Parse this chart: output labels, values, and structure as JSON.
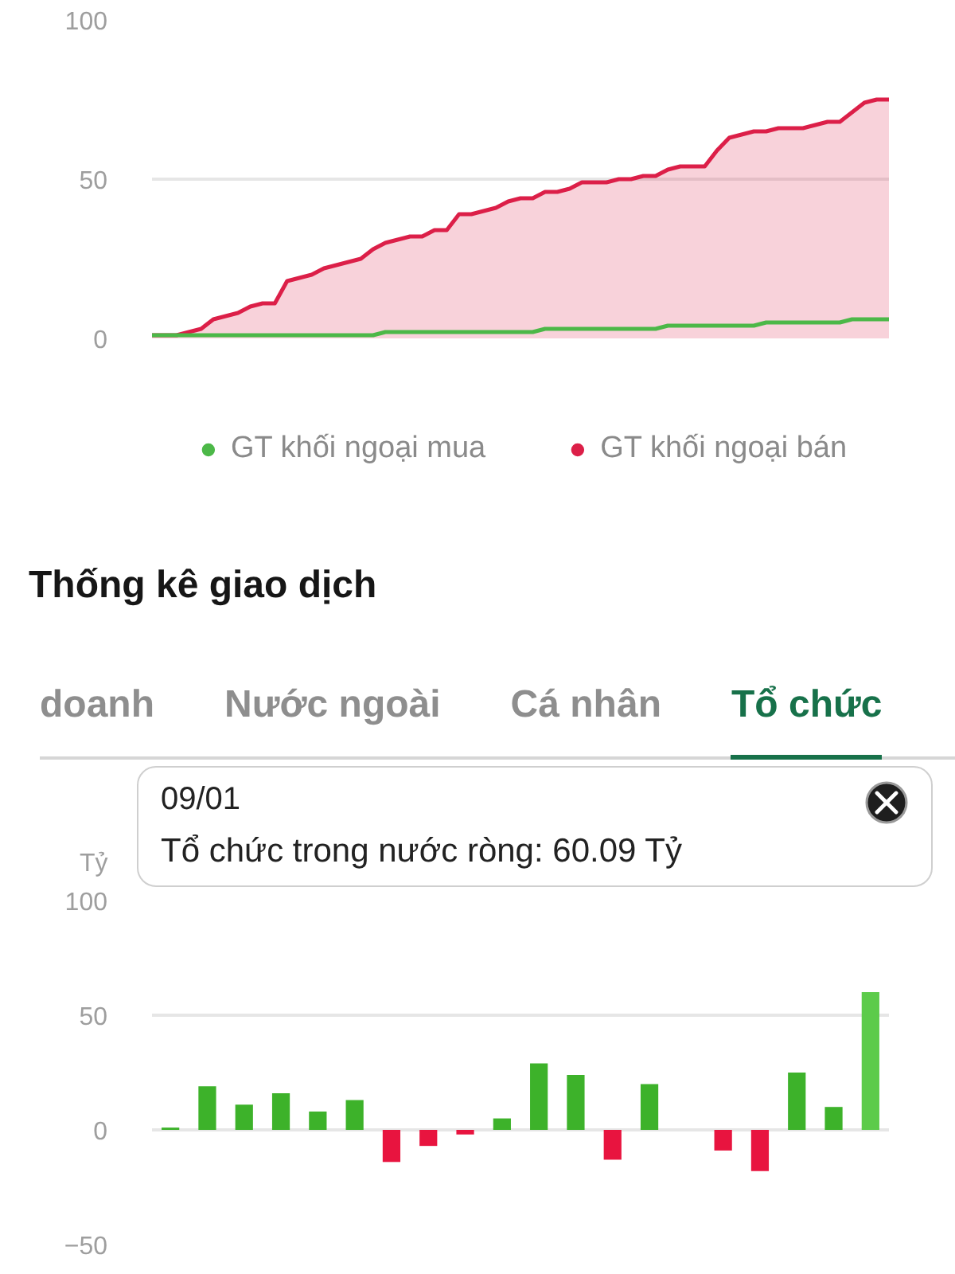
{
  "chart_data": [
    {
      "type": "area",
      "categories": [
        null,
        null,
        null,
        null,
        null,
        null,
        null,
        null,
        null,
        null,
        null,
        null,
        null,
        null,
        null,
        null,
        null,
        null,
        null,
        null,
        null,
        null,
        null,
        null,
        null,
        null,
        null,
        null,
        null,
        null,
        null,
        null,
        null,
        null,
        null,
        null,
        null,
        null,
        null,
        null,
        null,
        null,
        null,
        null,
        null,
        null,
        null,
        null,
        null,
        null,
        null,
        null,
        null,
        null,
        null,
        null,
        null,
        null,
        null,
        null,
        null
      ],
      "series": [
        {
          "name": "GT khối ngoại mua",
          "type": "line",
          "color": "#4cb848",
          "values": [
            1,
            1,
            1,
            1,
            1,
            1,
            1,
            1,
            1,
            1,
            1,
            1,
            1,
            1,
            1,
            1,
            1,
            1,
            1,
            2,
            2,
            2,
            2,
            2,
            2,
            2,
            2,
            2,
            2,
            2,
            2,
            2,
            3,
            3,
            3,
            3,
            3,
            3,
            3,
            3,
            3,
            3,
            4,
            4,
            4,
            4,
            4,
            4,
            4,
            4,
            5,
            5,
            5,
            5,
            5,
            5,
            5,
            6,
            6,
            6,
            6
          ]
        },
        {
          "name": "GT khối ngoại bán",
          "color": "#dc1f48",
          "values": [
            1,
            1,
            1,
            2,
            3,
            6,
            7,
            8,
            10,
            11,
            11,
            18,
            19,
            20,
            22,
            23,
            24,
            25,
            28,
            30,
            31,
            32,
            32,
            34,
            34,
            39,
            39,
            40,
            41,
            43,
            44,
            44,
            46,
            46,
            47,
            49,
            49,
            49,
            50,
            50,
            51,
            51,
            53,
            54,
            54,
            54,
            59,
            63,
            64,
            65,
            65,
            66,
            66,
            66,
            67,
            68,
            68,
            71,
            74,
            75,
            75
          ]
        }
      ],
      "ylim": [
        0,
        100
      ],
      "yticks": [
        0,
        50,
        100
      ],
      "grid": "y",
      "legend": "bottom",
      "tick_labels": "y"
    },
    {
      "type": "other",
      "title": "Thống kê giao dịch",
      "categories": [
        "doanh",
        "Nước ngoài",
        "Cá nhân",
        "Tổ chức"
      ],
      "colors": [
        "#8e8e8e",
        "#8e8e8e",
        "#8e8e8e",
        "#17714a"
      ]
    },
    {
      "type": "bar",
      "ylabel": "Tỷ",
      "categories": [
        null,
        null,
        null,
        null,
        null,
        null,
        null,
        null,
        null,
        null,
        null,
        null,
        null,
        null,
        null,
        null,
        null,
        null,
        null,
        null
      ],
      "values": [
        1,
        19,
        11,
        16,
        8,
        13,
        -14,
        -7,
        -2,
        5,
        29,
        24,
        -13,
        20,
        null,
        -9,
        -18,
        25,
        10,
        60.09
      ],
      "colors": [
        "#3db22a",
        "#3db22a",
        "#3db22a",
        "#3db22a",
        "#3db22a",
        "#3db22a",
        "#e8143f",
        "#e8143f",
        "#e8143f",
        "#3db22a",
        "#3db22a",
        "#3db22a",
        "#e8143f",
        "#3db22a",
        "#3db22a",
        "#e8143f",
        "#e8143f",
        "#3db22a",
        "#3db22a",
        "#5ccb4a"
      ],
      "ylim": [
        -50,
        100
      ],
      "yticks": [
        -50,
        0,
        50,
        100
      ],
      "grid": "y",
      "tick_labels": "y",
      "annotations": [
        "09/01",
        "Tổ chức trong nước ròng: 60.09 Tỷ"
      ]
    }
  ]
}
